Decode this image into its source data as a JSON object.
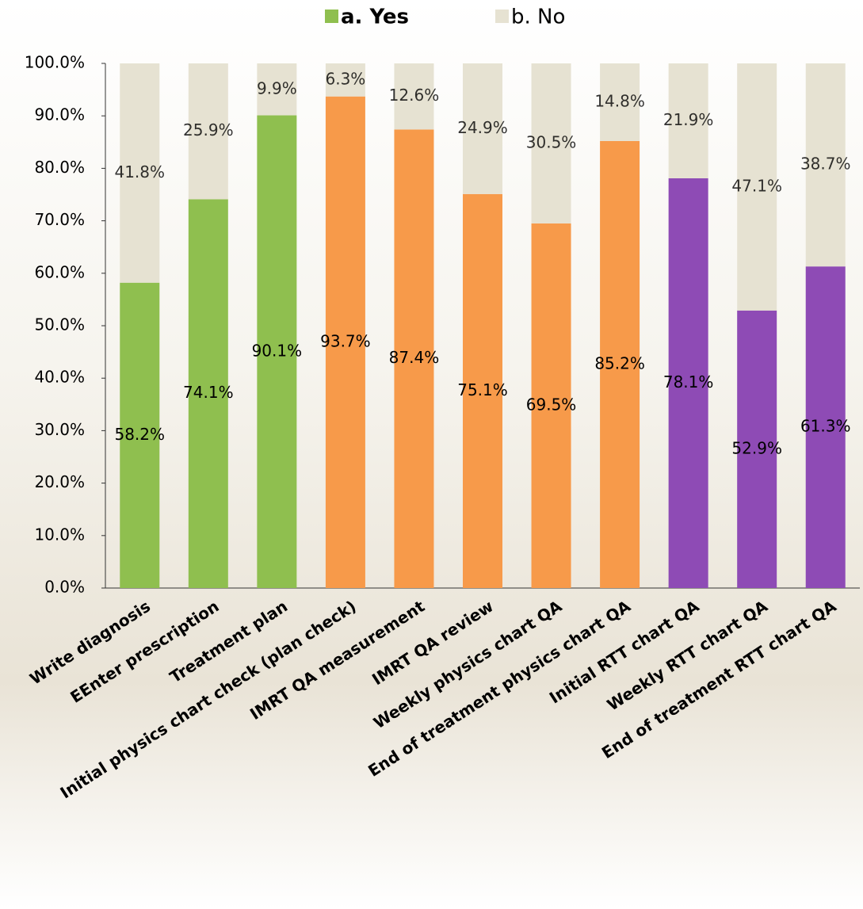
{
  "chart_data": {
    "type": "stacked_bar",
    "categories": [
      "Write diagnosis",
      "EEnter prescription",
      "Treatment plan",
      "Initial physics chart check (plan check)",
      "IMRT QA measurement",
      "IMRT QA review",
      "Weekly physics chart QA",
      "End of treatment physics chart QA",
      "Initial RTT chart QA",
      "Weekly RTT chart QA",
      "End of treatment RTT chart QA"
    ],
    "series": [
      {
        "name": "a. Yes",
        "color": "#8fbf4f",
        "colors": [
          "#8fbf4f",
          "#8fbf4f",
          "#8fbf4f",
          "#f79a4a",
          "#f79a4a",
          "#f79a4a",
          "#f79a4a",
          "#f79a4a",
          "#8e4bb5",
          "#8e4bb5",
          "#8e4bb5"
        ],
        "values": [
          58.2,
          74.1,
          90.1,
          93.7,
          87.4,
          75.1,
          69.5,
          85.2,
          78.1,
          52.9,
          61.3
        ],
        "value_labels": [
          "58.2%",
          "74.1%",
          "90.1%",
          "93.7%",
          "87.4%",
          "75.1%",
          "69.5%",
          "85.2%",
          "78.1%",
          "52.9%",
          "61.3%"
        ]
      },
      {
        "name": "b. No",
        "color": "#e6e2d2",
        "values": [
          41.8,
          25.9,
          9.9,
          6.3,
          12.6,
          24.9,
          30.5,
          14.8,
          21.9,
          47.1,
          38.7
        ],
        "value_labels": [
          "41.8%",
          "25.9%",
          "9.9%",
          "6.3%",
          "12.6%",
          "24.9%",
          "30.5%",
          "14.8%",
          "21.9%",
          "47.1%",
          "38.7%"
        ]
      }
    ],
    "ylim": [
      0,
      100
    ],
    "yticks": [
      {
        "value": 0,
        "label": "0.0%"
      },
      {
        "value": 10,
        "label": "10.0%"
      },
      {
        "value": 20,
        "label": "20.0%"
      },
      {
        "value": 30,
        "label": "30.0%"
      },
      {
        "value": 40,
        "label": "40.0%"
      },
      {
        "value": 50,
        "label": "50.0%"
      },
      {
        "value": 60,
        "label": "60.0%"
      },
      {
        "value": 70,
        "label": "70.0%"
      },
      {
        "value": 80,
        "label": "80.0%"
      },
      {
        "value": 90,
        "label": "90.0%"
      },
      {
        "value": 100,
        "label": "100.0%"
      }
    ],
    "legend": "top"
  }
}
